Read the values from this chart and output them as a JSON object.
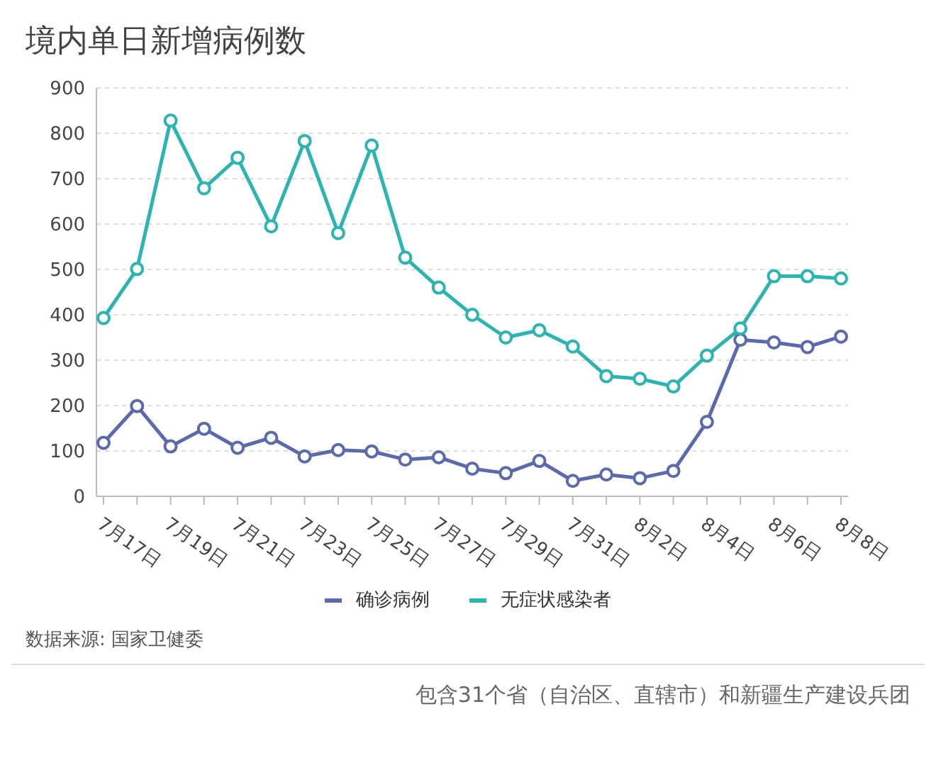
{
  "chart_data": {
    "type": "line",
    "title": "境内单日新增病例数",
    "categories": [
      "7月17日",
      null,
      "7月19日",
      null,
      "7月21日",
      null,
      "7月23日",
      null,
      "7月25日",
      null,
      "7月27日",
      null,
      "7月29日",
      null,
      "7月31日",
      null,
      "8月2日",
      null,
      "8月4日",
      null,
      "8月6日",
      null,
      "8月8日"
    ],
    "series": [
      {
        "name": "确诊病例",
        "color": "#5b6aad",
        "values": [
          118,
          199,
          110,
          149,
          107,
          129,
          88,
          102,
          99,
          81,
          86,
          61,
          51,
          78,
          34,
          48,
          40,
          56,
          164,
          345,
          339,
          329,
          352
        ]
      },
      {
        "name": "无症状感染者",
        "color": "#2bb5b0",
        "values": [
          393,
          501,
          828,
          679,
          746,
          595,
          783,
          580,
          773,
          526,
          460,
          400,
          350,
          366,
          330,
          265,
          259,
          242,
          310,
          370,
          485,
          485,
          480
        ]
      }
    ],
    "ylim": [
      0,
      900
    ],
    "yticks": [
      0,
      100,
      200,
      300,
      400,
      500,
      600,
      700,
      800,
      900
    ],
    "grid": "y",
    "legend": "bottom",
    "marker": "circle",
    "line_style": "solid",
    "annotations": [
      "数据来源: 国家卫健委",
      "包含31个省（自治区、直辖市）和新疆生产建设兵团"
    ]
  }
}
